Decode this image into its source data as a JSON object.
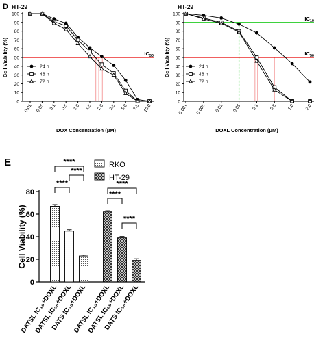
{
  "chart_data": [
    {
      "type": "line",
      "panel_letter": "D",
      "title": "HT-29",
      "xlabel": "DOX Concentration (μM)",
      "ylabel": "Cell Viability (%)",
      "x_ticks": [
        "0.01",
        "0.05",
        "0.1",
        "0.5",
        "1.0",
        "1.5",
        "2.0",
        "2.5",
        "5.0",
        "7.5",
        "10.0"
      ],
      "y_ticks": [
        "0",
        "10",
        "20",
        "30",
        "40",
        "50",
        "60",
        "70",
        "80",
        "90",
        "100"
      ],
      "ylim": [
        0,
        100
      ],
      "x_scale": "categorical",
      "grid": false,
      "legend_position": "left-middle",
      "series": [
        {
          "name": "24 h",
          "marker": "circle-filled",
          "x": [
            "0.01",
            "0.05",
            "0.1",
            "0.5",
            "1.0",
            "1.5",
            "2.0",
            "2.5",
            "5.0",
            "7.5",
            "10.0"
          ],
          "values": [
            100,
            100,
            94,
            89,
            73,
            61,
            51,
            41,
            24,
            2,
            0
          ]
        },
        {
          "name": "48 h",
          "marker": "square-open",
          "x": [
            "0.01",
            "0.05",
            "0.1",
            "0.5",
            "1.0",
            "1.5",
            "2.0",
            "2.5",
            "5.0",
            "7.5",
            "10.0"
          ],
          "values": [
            100,
            100,
            91,
            86,
            70,
            57,
            42,
            32,
            12,
            0,
            0
          ]
        },
        {
          "name": "72 h",
          "marker": "triangle-open",
          "x": [
            "0.01",
            "0.05",
            "0.1",
            "0.5",
            "1.0",
            "1.5",
            "2.0",
            "2.5",
            "5.0",
            "7.5",
            "10.0"
          ],
          "values": [
            100,
            100,
            89,
            82,
            66,
            51,
            37,
            30,
            9,
            0,
            0
          ]
        }
      ],
      "reference_lines": [
        {
          "label_main": "IC",
          "label_sub": "50",
          "y": 50,
          "color": "#e60000"
        }
      ],
      "ic_markers": [
        {
          "x_pos": 5.5,
          "color": "#f5a0a0"
        },
        {
          "x_pos": 5.75,
          "color": "#f5a0a0"
        },
        {
          "x_pos": 6.05,
          "color": "#f5a0a0"
        }
      ]
    },
    {
      "type": "line",
      "panel_letter": "",
      "title": "HT-29",
      "xlabel": "DOXL Concentration (μM)",
      "ylabel": "Cell Viability (%)",
      "x_ticks": [
        "0.001",
        "0.005",
        "0.01",
        "0.05",
        "0.1",
        "0.5",
        "1.0",
        "2.0"
      ],
      "y_ticks": [
        "0",
        "10",
        "20",
        "30",
        "40",
        "50",
        "60",
        "70",
        "80",
        "90",
        "100"
      ],
      "ylim": [
        0,
        100
      ],
      "x_scale": "categorical",
      "grid": false,
      "legend_position": "left-middle",
      "series": [
        {
          "name": "24 h",
          "marker": "circle-filled",
          "x": [
            "0.001",
            "0.005",
            "0.01",
            "0.05",
            "0.1",
            "0.5",
            "1.0",
            "2.0"
          ],
          "values": [
            100,
            98,
            95,
            88,
            78,
            61,
            43,
            22
          ]
        },
        {
          "name": "48 h",
          "marker": "square-open",
          "x": [
            "0.001",
            "0.005",
            "0.01",
            "0.05",
            "0.1",
            "0.5",
            "1.0",
            "2.0"
          ],
          "values": [
            100,
            95,
            90,
            80,
            50,
            16,
            0,
            0
          ]
        },
        {
          "name": "72 h",
          "marker": "triangle-open",
          "x": [
            "0.001",
            "0.005",
            "0.01",
            "0.05",
            "0.1",
            "0.5",
            "1.0",
            "2.0"
          ],
          "values": [
            100,
            94,
            89,
            79,
            46,
            13,
            0,
            0
          ]
        }
      ],
      "reference_lines": [
        {
          "label_main": "IC",
          "label_sub": "10",
          "y": 90,
          "color": "#22cc22"
        },
        {
          "label_main": "IC",
          "label_sub": "50",
          "y": 50,
          "color": "#e60000"
        }
      ],
      "ic_markers": [
        {
          "x_pos": 3.0,
          "color": "#22cc22",
          "dashed": true,
          "top": 90
        },
        {
          "x_pos": 3.9,
          "color": "#f5a0a0"
        },
        {
          "x_pos": 4.05,
          "color": "#f5a0a0"
        },
        {
          "x_pos": 5.0,
          "color": "#f5a0a0"
        }
      ]
    },
    {
      "type": "bar",
      "panel_letter": "E",
      "ylabel": "Cell Viability (%)",
      "y_ticks": [
        "0",
        "20",
        "40",
        "60",
        "80"
      ],
      "ylim": [
        0,
        80
      ],
      "grid": false,
      "legend_position": "top-right",
      "categories": [
        "DATSL IC₁₀+DOXL",
        "DATSL IC₂₅+DOXL",
        "DATS IC₃₅+DOXL"
      ],
      "series": [
        {
          "name": "RKO",
          "pattern": "dots",
          "values": [
            67,
            45,
            23
          ],
          "errors": [
            1.5,
            1.2,
            0.8
          ]
        },
        {
          "name": "HT-29",
          "pattern": "cross",
          "values": [
            62,
            39,
            19
          ],
          "errors": [
            1.0,
            1.2,
            1.5
          ]
        }
      ],
      "significance": [
        {
          "series": 0,
          "from": 0,
          "to": 1,
          "level": 1,
          "label": "****"
        },
        {
          "series": 0,
          "from": 0,
          "to": 2,
          "level": 3,
          "label": "****"
        },
        {
          "series": 0,
          "from": 1,
          "to": 2,
          "level": 2,
          "label": "****"
        },
        {
          "series": 1,
          "from": 0,
          "to": 1,
          "level": 1,
          "label": "****"
        },
        {
          "series": 1,
          "from": 0,
          "to": 2,
          "level": 2,
          "label": "****"
        },
        {
          "series": 1,
          "from": 1,
          "to": 2,
          "level": 0,
          "label": "****"
        }
      ]
    }
  ]
}
